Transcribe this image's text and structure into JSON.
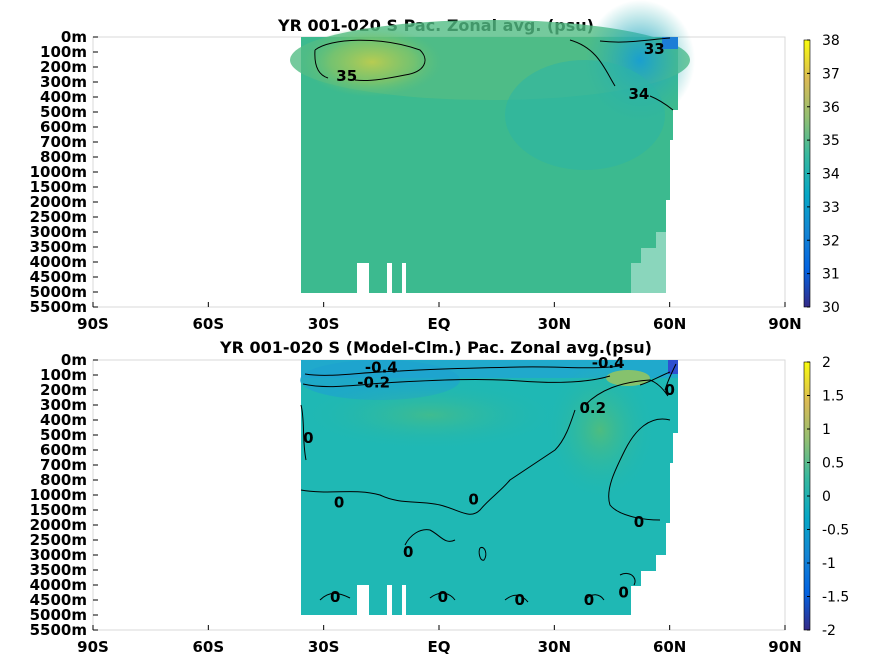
{
  "chart_data": [
    {
      "type": "heatmap",
      "title": "YR 001-020 S Pac. Zonal avg. (psu)",
      "x_ticks": [
        "90S",
        "60S",
        "30S",
        "EQ",
        "30N",
        "60N",
        "90N"
      ],
      "x_range": [
        -90,
        90
      ],
      "y_ticks": [
        "0m",
        "100m",
        "200m",
        "300m",
        "400m",
        "500m",
        "600m",
        "700m",
        "800m",
        "1000m",
        "1500m",
        "2000m",
        "2500m",
        "3000m",
        "3500m",
        "4000m",
        "4500m",
        "5000m",
        "5500m"
      ],
      "colorbar_ticks": [
        "38",
        "37",
        "36",
        "35",
        "34",
        "33",
        "32",
        "31",
        "30"
      ],
      "colorbar_range": [
        30,
        38
      ],
      "colormap": "parula",
      "data_extent_lat": [
        -35,
        62
      ],
      "contour_labels": [
        {
          "text": "33",
          "lat": 56,
          "depth_index": 0.8
        },
        {
          "text": "35",
          "lat": -24,
          "depth_index": 2.6
        },
        {
          "text": "34",
          "lat": 52,
          "depth_index": 3.8
        }
      ],
      "fill_value_mean": 34.7
    },
    {
      "type": "heatmap",
      "title": "YR 001-020 S (Model-Clm.) Pac. Zonal avg.(psu)",
      "x_ticks": [
        "90S",
        "60S",
        "30S",
        "EQ",
        "30N",
        "60N",
        "90N"
      ],
      "x_range": [
        -90,
        90
      ],
      "y_ticks": [
        "0m",
        "100m",
        "200m",
        "300m",
        "400m",
        "500m",
        "600m",
        "700m",
        "800m",
        "1000m",
        "1500m",
        "2000m",
        "2500m",
        "3000m",
        "3500m",
        "4000m",
        "4500m",
        "5000m",
        "5500m"
      ],
      "colorbar_ticks": [
        "2",
        "1.5",
        "1",
        "0.5",
        "0",
        "-0.5",
        "-1",
        "-1.5",
        "-2"
      ],
      "colorbar_range": [
        -2,
        2
      ],
      "colormap": "parula",
      "data_extent_lat": [
        -35,
        62
      ],
      "contour_labels": [
        {
          "text": "-0.4",
          "lat": -15,
          "depth_index": 0.5
        },
        {
          "text": "-0.2",
          "lat": -17,
          "depth_index": 1.5
        },
        {
          "text": "-0.4",
          "lat": 44,
          "depth_index": 0.2
        },
        {
          "text": "0",
          "lat": 60,
          "depth_index": 2.0
        },
        {
          "text": "0.2",
          "lat": 40,
          "depth_index": 3.2
        },
        {
          "text": "0",
          "lat": -34,
          "depth_index": 5.2
        },
        {
          "text": "0",
          "lat": -26,
          "depth_index": 9.5
        },
        {
          "text": "0",
          "lat": 9,
          "depth_index": 9.3
        },
        {
          "text": "0",
          "lat": 52,
          "depth_index": 10.8
        },
        {
          "text": "0",
          "lat": -8,
          "depth_index": 12.8
        },
        {
          "text": "0",
          "lat": -27,
          "depth_index": 15.8
        },
        {
          "text": "0",
          "lat": 1,
          "depth_index": 15.8
        },
        {
          "text": "0",
          "lat": 21,
          "depth_index": 16.0
        },
        {
          "text": "0",
          "lat": 39,
          "depth_index": 16.0
        },
        {
          "text": "0",
          "lat": 48,
          "depth_index": 15.5
        }
      ],
      "fill_value_mean": 0.0
    }
  ]
}
